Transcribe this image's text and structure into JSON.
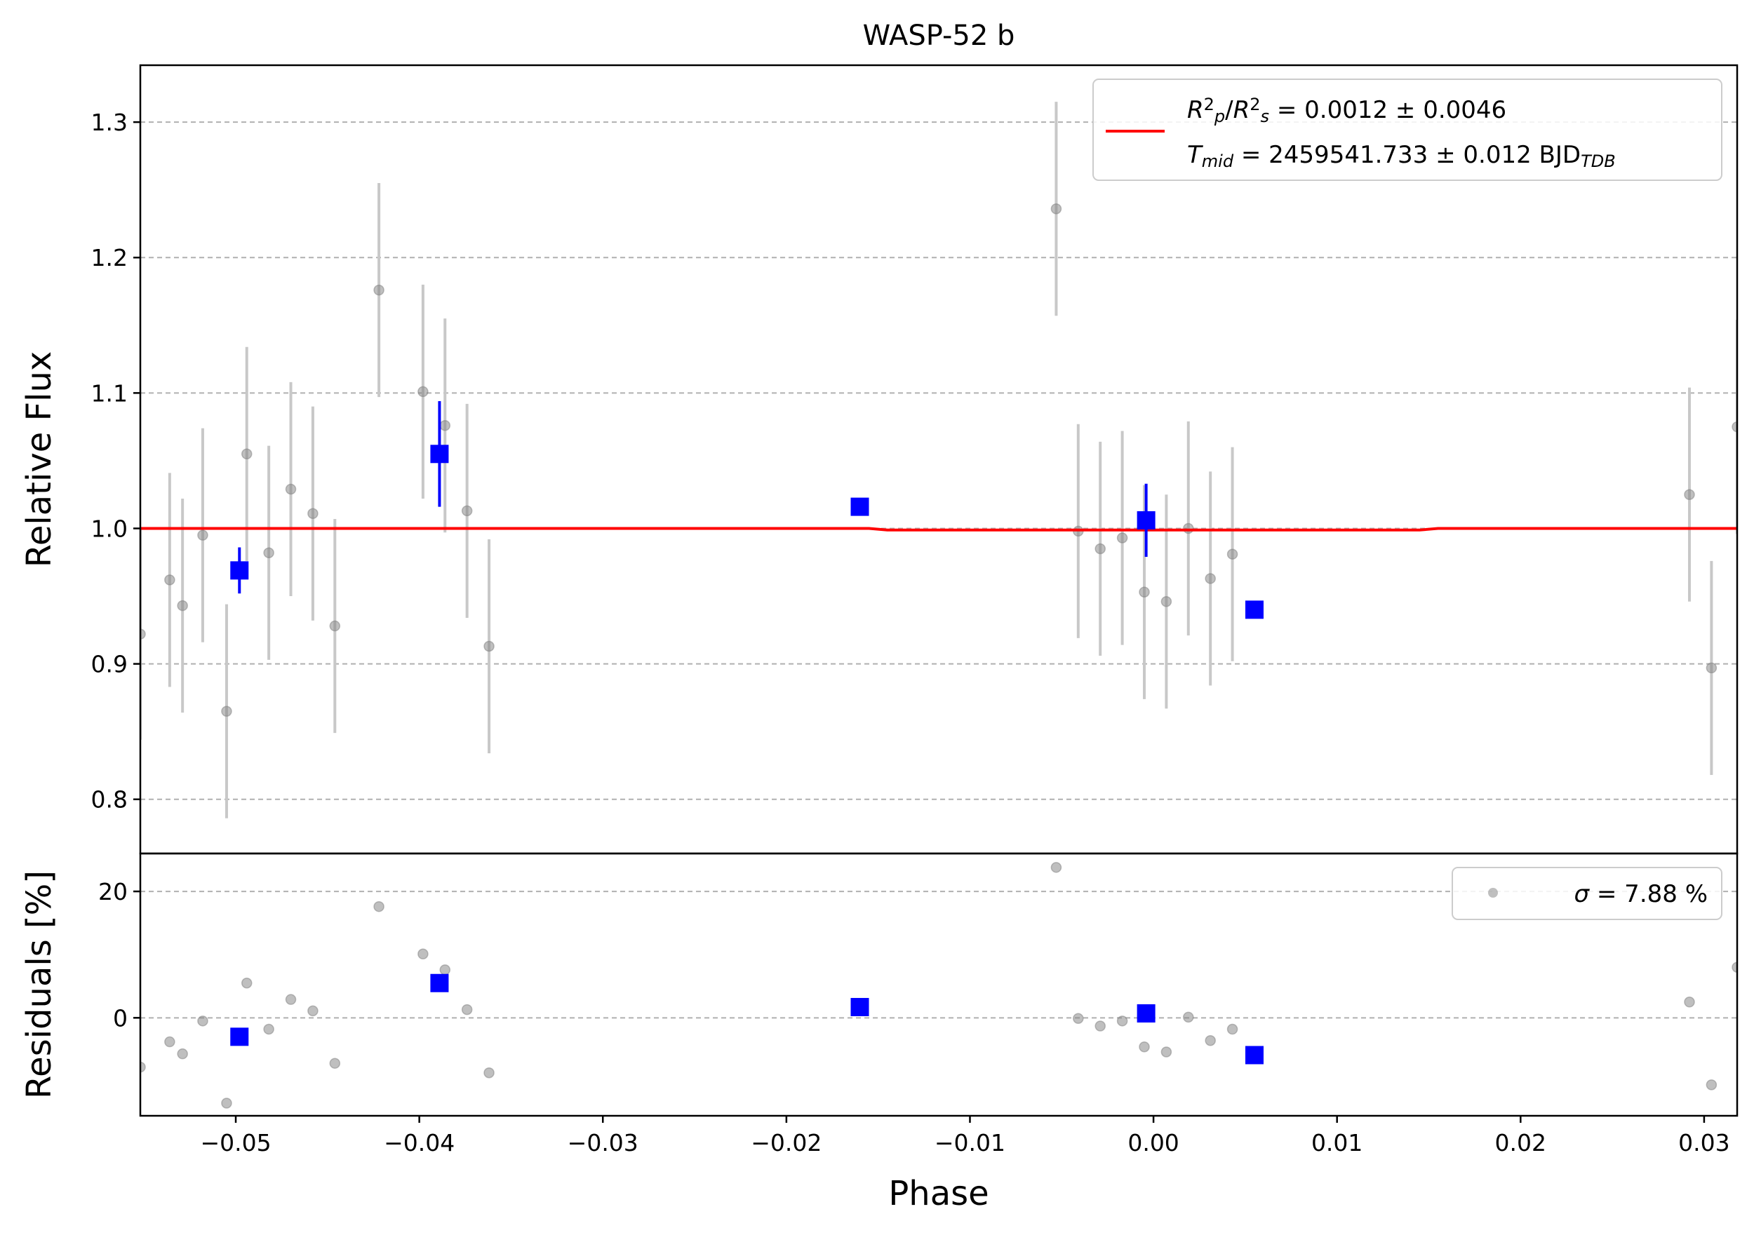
{
  "chart_data": [
    {
      "type": "scatter",
      "panel": "main",
      "title": "WASP-52 b",
      "xlabel": "",
      "ylabel": "Relative Flux",
      "xlim": [
        -0.0552,
        0.0318
      ],
      "ylim": [
        0.76,
        1.342
      ],
      "xticks": [],
      "yticks": [
        {
          "value": 0.8,
          "label": "0.8"
        },
        {
          "value": 0.9,
          "label": "0.9"
        },
        {
          "value": 1.0,
          "label": "1.0"
        },
        {
          "value": 1.1,
          "label": "1.1"
        },
        {
          "value": 1.2,
          "label": "1.2"
        },
        {
          "value": 1.3,
          "label": "1.3"
        }
      ],
      "grid": "horizontal dashed",
      "legend": {
        "placement": "top-right",
        "lines": [
          "R_p^2/R_s^2 = 0.0012 ± 0.0046",
          "T_mid = 2459541.733 ± 0.012 BJD_TDB"
        ]
      },
      "series": [
        {
          "role": "raw",
          "color": "#808080",
          "errorbar_color": "#c8c8c8",
          "points": [
            {
              "x": -0.0552,
              "y": 0.922,
              "err": 0.078
            },
            {
              "x": -0.0536,
              "y": 0.962,
              "err": 0.079
            },
            {
              "x": -0.0529,
              "y": 0.943,
              "err": 0.079
            },
            {
              "x": -0.0518,
              "y": 0.995,
              "err": 0.079
            },
            {
              "x": -0.0505,
              "y": 0.865,
              "err": 0.079
            },
            {
              "x": -0.0494,
              "y": 1.055,
              "err": 0.079
            },
            {
              "x": -0.0482,
              "y": 0.982,
              "err": 0.079
            },
            {
              "x": -0.047,
              "y": 1.029,
              "err": 0.079
            },
            {
              "x": -0.0458,
              "y": 1.011,
              "err": 0.079
            },
            {
              "x": -0.0446,
              "y": 0.928,
              "err": 0.079
            },
            {
              "x": -0.0422,
              "y": 1.176,
              "err": 0.079
            },
            {
              "x": -0.0398,
              "y": 1.101,
              "err": 0.079
            },
            {
              "x": -0.0386,
              "y": 1.076,
              "err": 0.079
            },
            {
              "x": -0.0374,
              "y": 1.013,
              "err": 0.079
            },
            {
              "x": -0.0362,
              "y": 0.913,
              "err": 0.079
            },
            {
              "x": -0.0053,
              "y": 1.236,
              "err": 0.079
            },
            {
              "x": -0.0041,
              "y": 0.998,
              "err": 0.079
            },
            {
              "x": -0.0029,
              "y": 0.985,
              "err": 0.079
            },
            {
              "x": -0.0017,
              "y": 0.993,
              "err": 0.079
            },
            {
              "x": -0.0005,
              "y": 0.953,
              "err": 0.079
            },
            {
              "x": 0.0007,
              "y": 0.946,
              "err": 0.079
            },
            {
              "x": 0.0019,
              "y": 1.0,
              "err": 0.079
            },
            {
              "x": 0.0031,
              "y": 0.963,
              "err": 0.079
            },
            {
              "x": 0.0043,
              "y": 0.981,
              "err": 0.079
            },
            {
              "x": 0.0292,
              "y": 1.025,
              "err": 0.079
            },
            {
              "x": 0.0304,
              "y": 0.897,
              "err": 0.079
            },
            {
              "x": 0.0318,
              "y": 1.075,
              "err": 0.079
            }
          ]
        },
        {
          "role": "binned",
          "color": "#0000ff",
          "points": [
            {
              "x": -0.0498,
              "y": 0.969,
              "err": 0.017
            },
            {
              "x": -0.0389,
              "y": 1.055,
              "err": 0.039
            },
            {
              "x": -0.016,
              "y": 1.016,
              "err": 0.0
            },
            {
              "x": -0.0004,
              "y": 1.006,
              "err": 0.027
            },
            {
              "x": 0.0055,
              "y": 0.94,
              "err": 0.0
            }
          ]
        },
        {
          "role": "model",
          "type": "line",
          "color": "#ff0000",
          "points": [
            {
              "x": -0.0552,
              "y": 1.0
            },
            {
              "x": -0.0155,
              "y": 1.0
            },
            {
              "x": -0.0145,
              "y": 0.9988
            },
            {
              "x": 0.0145,
              "y": 0.9988
            },
            {
              "x": 0.0155,
              "y": 1.0
            },
            {
              "x": 0.0318,
              "y": 1.0
            }
          ]
        }
      ]
    },
    {
      "type": "scatter",
      "panel": "residuals",
      "xlabel": "Phase",
      "ylabel": "Residuals [%]",
      "xlim": [
        -0.0552,
        0.0318
      ],
      "ylim": [
        -15.5,
        26.0
      ],
      "xticks": [
        {
          "value": -0.05,
          "label": "−0.05"
        },
        {
          "value": -0.04,
          "label": "−0.04"
        },
        {
          "value": -0.03,
          "label": "−0.03"
        },
        {
          "value": -0.02,
          "label": "−0.02"
        },
        {
          "value": -0.01,
          "label": "−0.01"
        },
        {
          "value": 0.0,
          "label": "0.00"
        },
        {
          "value": 0.01,
          "label": "0.01"
        },
        {
          "value": 0.02,
          "label": "0.02"
        },
        {
          "value": 0.03,
          "label": "0.03"
        }
      ],
      "yticks": [
        {
          "value": 0,
          "label": "0"
        },
        {
          "value": 20,
          "label": "20"
        }
      ],
      "grid": "horizontal dashed",
      "legend": {
        "placement": "top-right",
        "lines": [
          "σ = 7.88 %"
        ]
      },
      "series": [
        {
          "role": "raw",
          "color": "#808080",
          "points": [
            {
              "x": -0.0552,
              "y": -7.8
            },
            {
              "x": -0.0536,
              "y": -3.8
            },
            {
              "x": -0.0529,
              "y": -5.7
            },
            {
              "x": -0.0518,
              "y": -0.5
            },
            {
              "x": -0.0505,
              "y": -13.5
            },
            {
              "x": -0.0494,
              "y": 5.5
            },
            {
              "x": -0.0482,
              "y": -1.8
            },
            {
              "x": -0.047,
              "y": 2.9
            },
            {
              "x": -0.0458,
              "y": 1.1
            },
            {
              "x": -0.0446,
              "y": -7.2
            },
            {
              "x": -0.0422,
              "y": 17.6
            },
            {
              "x": -0.0398,
              "y": 10.1
            },
            {
              "x": -0.0386,
              "y": 7.6
            },
            {
              "x": -0.0374,
              "y": 1.3
            },
            {
              "x": -0.0362,
              "y": -8.7
            },
            {
              "x": -0.0053,
              "y": 23.8
            },
            {
              "x": -0.0041,
              "y": -0.1
            },
            {
              "x": -0.0029,
              "y": -1.3
            },
            {
              "x": -0.0017,
              "y": -0.5
            },
            {
              "x": -0.0005,
              "y": -4.6
            },
            {
              "x": 0.0007,
              "y": -5.4
            },
            {
              "x": 0.0019,
              "y": 0.1
            },
            {
              "x": 0.0031,
              "y": -3.6
            },
            {
              "x": 0.0043,
              "y": -1.8
            },
            {
              "x": 0.0292,
              "y": 2.5
            },
            {
              "x": 0.0304,
              "y": -10.6
            },
            {
              "x": 0.0318,
              "y": 8.0
            }
          ]
        },
        {
          "role": "binned",
          "color": "#0000ff",
          "points": [
            {
              "x": -0.0498,
              "y": -3.0
            },
            {
              "x": -0.0389,
              "y": 5.5
            },
            {
              "x": -0.016,
              "y": 1.7
            },
            {
              "x": -0.0004,
              "y": 0.7
            },
            {
              "x": 0.0055,
              "y": -5.9
            }
          ]
        }
      ]
    }
  ]
}
